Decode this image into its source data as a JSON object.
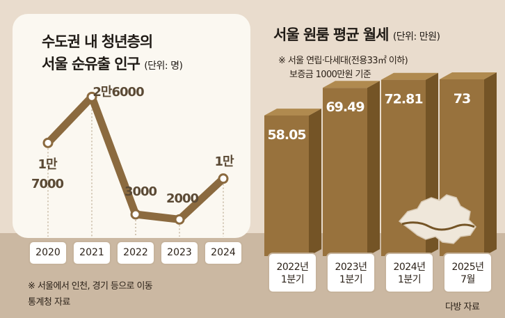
{
  "left": {
    "title_line1": "수도권 내 청년층의",
    "title_line2": "서울 순유출 인구",
    "unit": "(단위: 명)",
    "note": "※ 서울에서 인천, 경기 등으로 이동",
    "source": "통계청 자료"
  },
  "right": {
    "title": "서울 원룸 평균 월세",
    "unit": "(단위: 만원)",
    "note_line1": "※ 서울 연립·다세대(전용33㎡ 이하)",
    "note_line2": "보증금 1000만원 기준",
    "source": "다방 자료"
  },
  "colors": {
    "line": "#8b6a3f",
    "bar_front": "#98723d",
    "bar_top": "#b08a4f",
    "bar_side": "#745426"
  },
  "chart_data": [
    {
      "type": "line",
      "title": "수도권 내 청년층의 서울 순유출 인구",
      "unit": "(단위: 명)",
      "categories": [
        "2020",
        "2021",
        "2022",
        "2023",
        "2024"
      ],
      "values": [
        17000,
        26000,
        3000,
        2000,
        10000
      ],
      "point_labels": [
        [
          "1만",
          "7000"
        ],
        [
          "2만6000"
        ],
        [
          "3000"
        ],
        [
          "2000"
        ],
        [
          "1만"
        ]
      ],
      "ylim": [
        0,
        30000
      ]
    },
    {
      "type": "bar",
      "title": "서울 원룸 평균 월세",
      "unit": "(단위: 만원)",
      "categories": [
        [
          "2022년",
          "1분기"
        ],
        [
          "2023년",
          "1분기"
        ],
        [
          "2024년",
          "1분기"
        ],
        [
          "2025년",
          "7월"
        ]
      ],
      "values": [
        58.05,
        69.49,
        72.81,
        73
      ],
      "value_labels": [
        "58.05",
        "69.49",
        "72.81",
        "73"
      ],
      "ylim": [
        0,
        100
      ]
    }
  ]
}
